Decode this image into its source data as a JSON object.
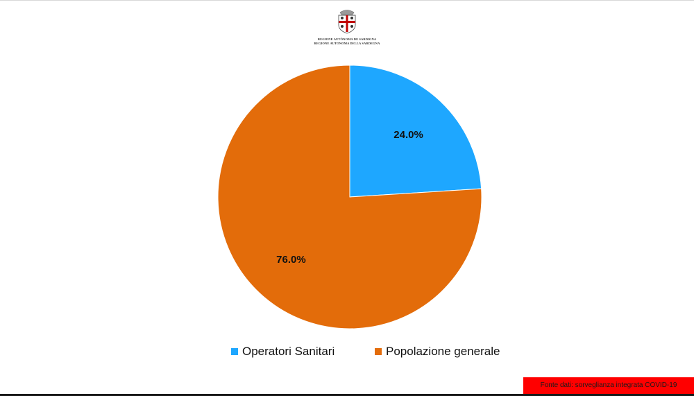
{
  "header": {
    "logo_line1": "REGIONE AUTÒNOMA DE SARDIGNA",
    "logo_line2": "REGIONE AUTONOMA DELLA SARDEGNA"
  },
  "chart_data": {
    "type": "pie",
    "categories": [
      "Operatori Sanitari",
      "Popolazione generale"
    ],
    "values": [
      24.0,
      76.0
    ],
    "data_labels": [
      "24.0%",
      "76.0%"
    ],
    "colors": [
      "#1ea7ff",
      "#e36c0a"
    ],
    "title": "",
    "legend": "bottom"
  },
  "footer": {
    "source": "Fonte dati: sorveglianza integrata COVID-19",
    "source_bg": "#ff0000"
  }
}
